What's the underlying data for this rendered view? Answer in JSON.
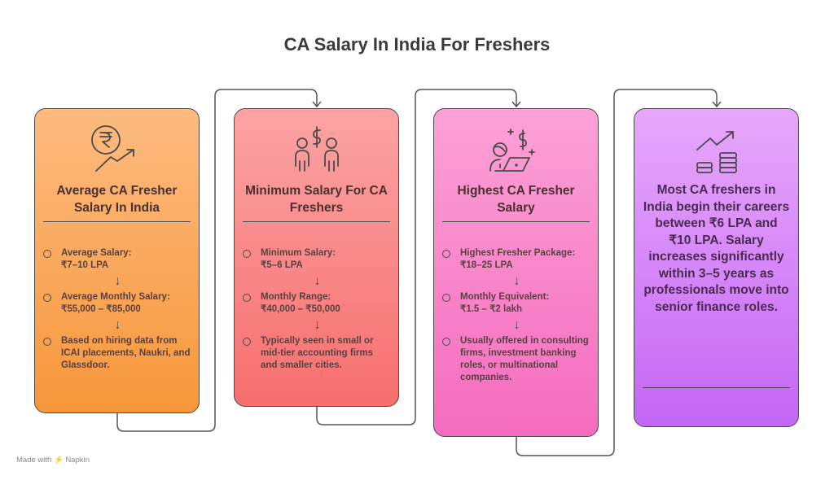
{
  "title": "CA Salary In India For Freshers",
  "cards": [
    {
      "icon": "rupee-growth-icon",
      "heading": "Average CA Fresher Salary In India",
      "color": "#f7a65a",
      "items": [
        {
          "label": "Average Salary:",
          "value": "₹7–10 LPA"
        },
        {
          "label": "Average Monthly Salary:",
          "value": "₹55,000 – ₹85,000"
        },
        {
          "label": "Based on hiring data from ICAI placements, Naukri, and Glassdoor.",
          "value": ""
        }
      ]
    },
    {
      "icon": "people-dollar-icon",
      "heading": "Minimum Salary For CA Freshers",
      "color": "#f98787",
      "items": [
        {
          "label": "Minimum Salary:",
          "value": "₹5–6 LPA"
        },
        {
          "label": "Monthly Range:",
          "value": "₹40,000 – ₹50,000"
        },
        {
          "label": "Typically seen in small or mid-tier accounting firms and smaller cities.",
          "value": ""
        }
      ]
    },
    {
      "icon": "person-laptop-dollar-icon",
      "heading": "Highest CA Fresher Salary",
      "color": "#f886c9",
      "items": [
        {
          "label": "Highest Fresher Package:",
          "value": "₹18–25 LPA"
        },
        {
          "label": "Monthly Equivalent:",
          "value": "₹1.5 – ₹2 lakh"
        },
        {
          "label": "Usually offered in consulting firms, investment banking roles, or multinational companies.",
          "value": ""
        }
      ]
    },
    {
      "icon": "coins-growth-icon",
      "summary": "Most CA freshers in India begin their careers between ₹6 LPA and ₹10 LPA. Salary increases significantly within 3–5 years as professionals move into senior finance roles.",
      "color": "#d584f7"
    }
  ],
  "footer": {
    "made_with": "Made with",
    "brand": "Napkin"
  }
}
